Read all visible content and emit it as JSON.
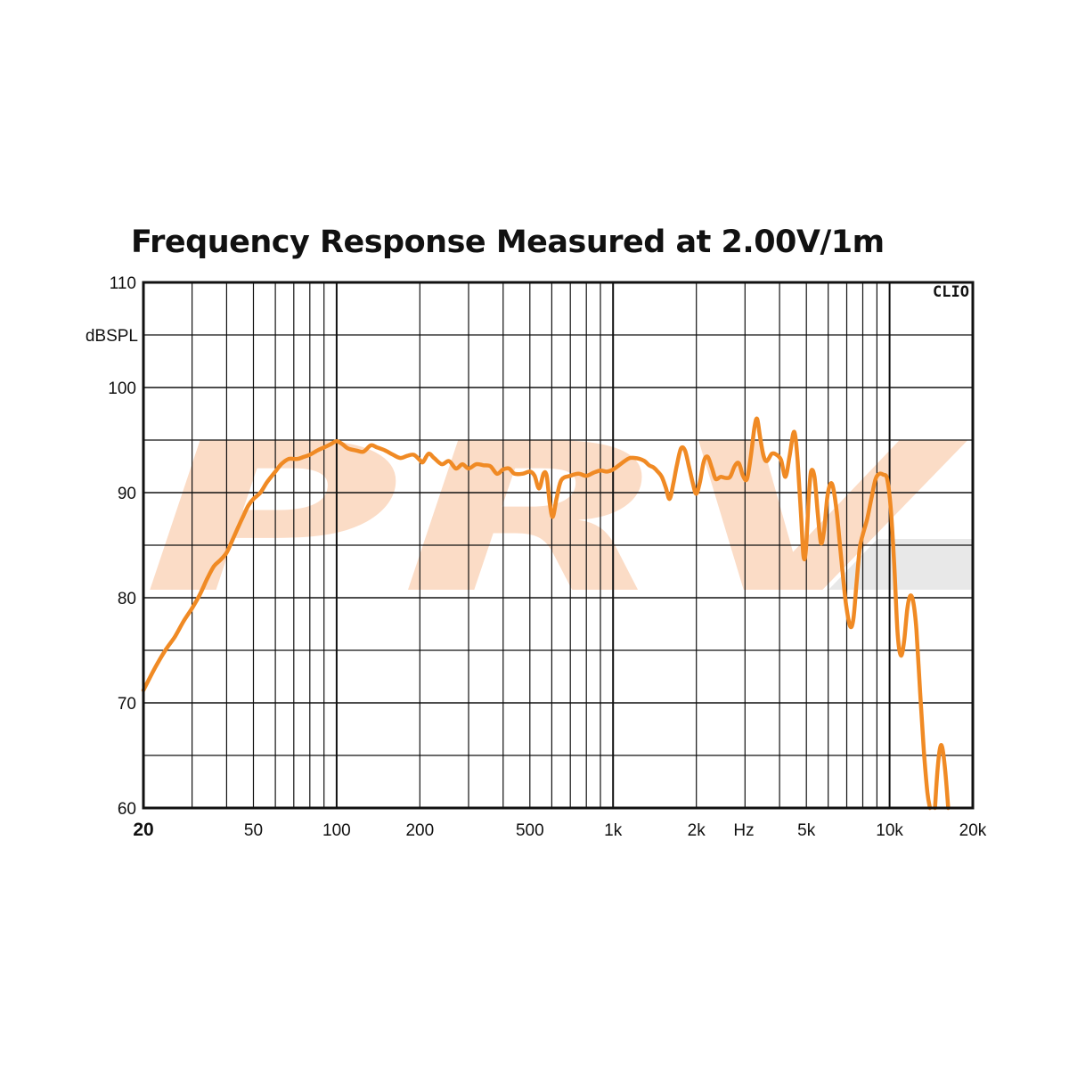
{
  "chart_data": {
    "type": "line",
    "title": "Frequency Response Measured at 2.00V/1m",
    "ylabel": "dBSPL",
    "xlabel": "Hz",
    "brand_mark": "CLIO",
    "watermark": "PRV",
    "x_scale": "log",
    "xlim": [
      20,
      20000
    ],
    "ylim": [
      60,
      110
    ],
    "grid": true,
    "line_color": "#F08A24",
    "x_ticks": [
      {
        "value": 20,
        "label": "20"
      },
      {
        "value": 50,
        "label": "50"
      },
      {
        "value": 100,
        "label": "100"
      },
      {
        "value": 200,
        "label": "200"
      },
      {
        "value": 500,
        "label": "500"
      },
      {
        "value": 1000,
        "label": "1k"
      },
      {
        "value": 2000,
        "label": "2k"
      },
      {
        "value": 5000,
        "label": "5k"
      },
      {
        "value": 10000,
        "label": "10k"
      },
      {
        "value": 20000,
        "label": "20k"
      }
    ],
    "y_ticks": [
      {
        "value": 60,
        "label": "60"
      },
      {
        "value": 70,
        "label": "70"
      },
      {
        "value": 80,
        "label": "80"
      },
      {
        "value": 90,
        "label": "90"
      },
      {
        "value": 100,
        "label": "100"
      },
      {
        "value": 110,
        "label": "110"
      }
    ],
    "series": [
      {
        "points": [
          [
            20,
            71.2
          ],
          [
            22,
            73.3
          ],
          [
            24,
            75.0
          ],
          [
            26,
            76.3
          ],
          [
            28,
            77.8
          ],
          [
            30,
            79.0
          ],
          [
            32,
            80.3
          ],
          [
            34,
            81.8
          ],
          [
            36,
            83.0
          ],
          [
            38,
            83.6
          ],
          [
            40,
            84.3
          ],
          [
            42,
            85.5
          ],
          [
            44,
            86.7
          ],
          [
            46,
            87.8
          ],
          [
            48,
            88.8
          ],
          [
            50,
            89.4
          ],
          [
            53,
            90.0
          ],
          [
            56,
            91.0
          ],
          [
            60,
            92.0
          ],
          [
            63,
            92.7
          ],
          [
            67,
            93.2
          ],
          [
            72,
            93.2
          ],
          [
            76,
            93.4
          ],
          [
            80,
            93.6
          ],
          [
            85,
            94.0
          ],
          [
            90,
            94.3
          ],
          [
            95,
            94.6
          ],
          [
            100,
            94.9
          ],
          [
            105,
            94.6
          ],
          [
            110,
            94.2
          ],
          [
            118,
            94.0
          ],
          [
            125,
            93.9
          ],
          [
            133,
            94.5
          ],
          [
            140,
            94.3
          ],
          [
            150,
            94.0
          ],
          [
            160,
            93.6
          ],
          [
            170,
            93.3
          ],
          [
            180,
            93.5
          ],
          [
            190,
            93.6
          ],
          [
            200,
            93.1
          ],
          [
            205,
            92.9
          ],
          [
            215,
            93.7
          ],
          [
            225,
            93.3
          ],
          [
            240,
            92.7
          ],
          [
            255,
            93.0
          ],
          [
            270,
            92.3
          ],
          [
            285,
            92.7
          ],
          [
            300,
            92.3
          ],
          [
            320,
            92.7
          ],
          [
            340,
            92.6
          ],
          [
            360,
            92.5
          ],
          [
            380,
            91.8
          ],
          [
            400,
            92.2
          ],
          [
            420,
            92.3
          ],
          [
            440,
            91.8
          ],
          [
            470,
            91.8
          ],
          [
            500,
            92.0
          ],
          [
            520,
            91.6
          ],
          [
            540,
            90.4
          ],
          [
            560,
            91.8
          ],
          [
            575,
            91.6
          ],
          [
            590,
            89.0
          ],
          [
            605,
            87.7
          ],
          [
            625,
            89.5
          ],
          [
            650,
            91.2
          ],
          [
            700,
            91.6
          ],
          [
            750,
            91.8
          ],
          [
            800,
            91.6
          ],
          [
            850,
            91.9
          ],
          [
            900,
            92.1
          ],
          [
            950,
            92.0
          ],
          [
            1000,
            92.2
          ],
          [
            1050,
            92.6
          ],
          [
            1100,
            93.0
          ],
          [
            1150,
            93.3
          ],
          [
            1200,
            93.3
          ],
          [
            1250,
            93.2
          ],
          [
            1300,
            93.0
          ],
          [
            1350,
            92.6
          ],
          [
            1400,
            92.4
          ],
          [
            1450,
            92.0
          ],
          [
            1500,
            91.5
          ],
          [
            1550,
            90.5
          ],
          [
            1600,
            89.4
          ],
          [
            1650,
            90.8
          ],
          [
            1700,
            92.6
          ],
          [
            1760,
            94.2
          ],
          [
            1820,
            94.0
          ],
          [
            1880,
            92.5
          ],
          [
            1950,
            90.7
          ],
          [
            2000,
            89.9
          ],
          [
            2060,
            91.0
          ],
          [
            2130,
            93.0
          ],
          [
            2200,
            93.4
          ],
          [
            2280,
            92.3
          ],
          [
            2350,
            91.3
          ],
          [
            2450,
            91.5
          ],
          [
            2550,
            91.4
          ],
          [
            2650,
            91.5
          ],
          [
            2750,
            92.5
          ],
          [
            2850,
            92.8
          ],
          [
            2950,
            91.6
          ],
          [
            3050,
            91.3
          ],
          [
            3150,
            93.5
          ],
          [
            3250,
            96.3
          ],
          [
            3320,
            97.0
          ],
          [
            3400,
            95.3
          ],
          [
            3500,
            93.5
          ],
          [
            3600,
            93.0
          ],
          [
            3750,
            93.7
          ],
          [
            3900,
            93.6
          ],
          [
            4050,
            93.1
          ],
          [
            4200,
            91.5
          ],
          [
            4350,
            93.5
          ],
          [
            4480,
            95.6
          ],
          [
            4560,
            95.4
          ],
          [
            4650,
            93.0
          ],
          [
            4780,
            88.0
          ],
          [
            4880,
            84.0
          ],
          [
            4980,
            84.5
          ],
          [
            5100,
            89.5
          ],
          [
            5200,
            92.0
          ],
          [
            5350,
            91.5
          ],
          [
            5500,
            88.0
          ],
          [
            5650,
            85.2
          ],
          [
            5800,
            86.5
          ],
          [
            5950,
            89.5
          ],
          [
            6100,
            90.8
          ],
          [
            6250,
            90.5
          ],
          [
            6450,
            88.0
          ],
          [
            6700,
            83.5
          ],
          [
            6950,
            79.5
          ],
          [
            7200,
            77.3
          ],
          [
            7400,
            78.0
          ],
          [
            7600,
            81.5
          ],
          [
            7800,
            84.7
          ],
          [
            8000,
            86.0
          ],
          [
            8300,
            87.5
          ],
          [
            8600,
            89.5
          ],
          [
            8900,
            91.3
          ],
          [
            9200,
            91.8
          ],
          [
            9500,
            91.7
          ],
          [
            9800,
            91.3
          ],
          [
            10100,
            88.5
          ],
          [
            10400,
            83.0
          ],
          [
            10700,
            76.5
          ],
          [
            11000,
            74.5
          ],
          [
            11300,
            76.0
          ],
          [
            11600,
            79.0
          ],
          [
            11900,
            80.2
          ],
          [
            12200,
            79.5
          ],
          [
            12500,
            77.0
          ],
          [
            12900,
            71.0
          ],
          [
            13300,
            65.5
          ],
          [
            13700,
            61.5
          ],
          [
            14000,
            60.0
          ]
        ]
      },
      {
        "points": [
          [
            14600,
            60.0
          ],
          [
            14900,
            63.5
          ],
          [
            15200,
            65.6
          ],
          [
            15500,
            65.8
          ],
          [
            15900,
            63.5
          ],
          [
            16300,
            60.0
          ]
        ]
      }
    ]
  }
}
